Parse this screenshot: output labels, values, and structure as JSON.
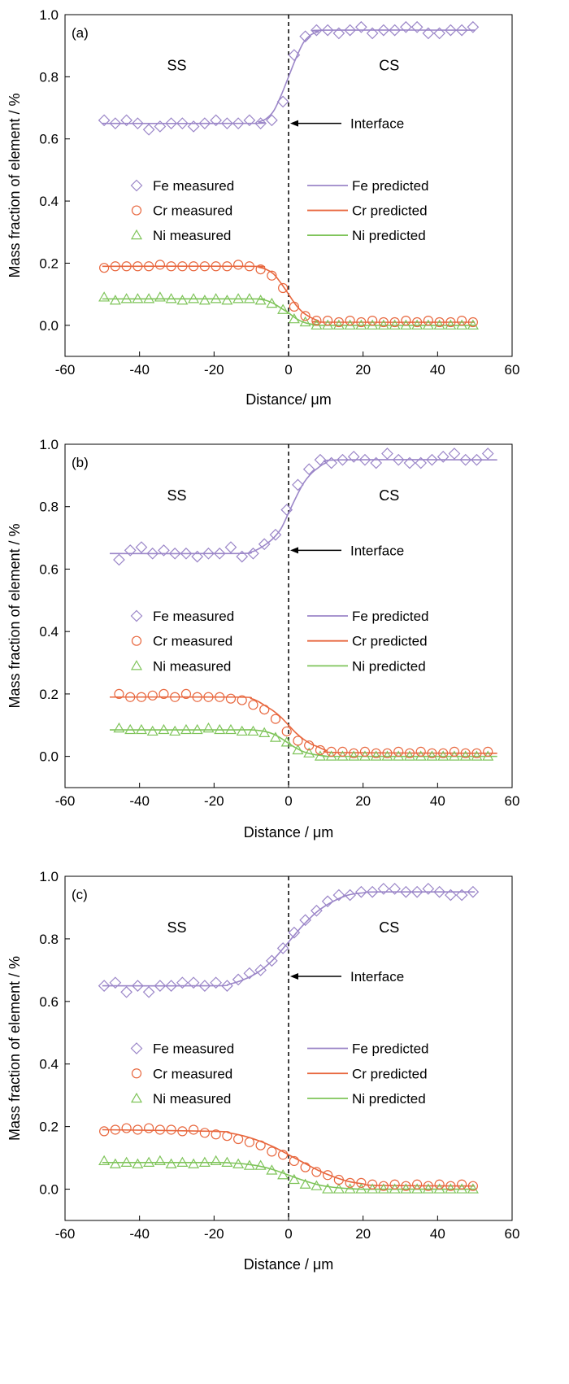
{
  "colors": {
    "fe": "#9b86c8",
    "cr": "#e8673e",
    "ni": "#7fc45a",
    "axis": "#000000",
    "interface_line": "#000000"
  },
  "chart_data": [
    {
      "type": "scatter",
      "panel_label": "(a)",
      "xlabel": "Distance/ μm",
      "ylabel": "Mass fraction of element / %",
      "xlim": [
        -60,
        60
      ],
      "ylim": [
        -0.1,
        1.0
      ],
      "xticks": [
        "-60",
        "-40",
        "-20",
        "0",
        "20",
        "40",
        "60"
      ],
      "yticks": [
        "0.0",
        "0.2",
        "0.4",
        "0.6",
        "0.8",
        "1.0"
      ],
      "grid": false,
      "region_labels": {
        "left": "SS",
        "right": "CS"
      },
      "interface": {
        "x": 0,
        "label": "Interface",
        "arrow_y": 0.65
      },
      "legend": {
        "measured": [
          "Fe measured",
          "Cr measured",
          "Ni measured"
        ],
        "predicted": [
          "Fe predicted",
          "Cr predicted",
          "Ni predicted"
        ]
      },
      "measured": {
        "x": [
          -49.5,
          -46.5,
          -43.5,
          -40.5,
          -37.5,
          -34.5,
          -31.5,
          -28.5,
          -25.5,
          -22.5,
          -19.5,
          -16.5,
          -13.5,
          -10.5,
          -7.5,
          -4.5,
          -1.5,
          1.5,
          4.5,
          7.5,
          10.5,
          13.5,
          16.5,
          19.5,
          22.5,
          25.5,
          28.5,
          31.5,
          34.5,
          37.5,
          40.5,
          43.5,
          46.5,
          49.5
        ],
        "Fe": [
          0.66,
          0.65,
          0.66,
          0.65,
          0.63,
          0.64,
          0.65,
          0.65,
          0.64,
          0.65,
          0.66,
          0.65,
          0.65,
          0.66,
          0.65,
          0.66,
          0.72,
          0.87,
          0.93,
          0.95,
          0.95,
          0.94,
          0.95,
          0.96,
          0.94,
          0.95,
          0.95,
          0.96,
          0.96,
          0.94,
          0.94,
          0.95,
          0.95,
          0.96
        ],
        "Cr": [
          0.185,
          0.19,
          0.19,
          0.19,
          0.19,
          0.195,
          0.19,
          0.19,
          0.19,
          0.19,
          0.19,
          0.19,
          0.195,
          0.19,
          0.18,
          0.16,
          0.12,
          0.06,
          0.03,
          0.015,
          0.015,
          0.01,
          0.015,
          0.01,
          0.015,
          0.01,
          0.01,
          0.015,
          0.01,
          0.015,
          0.01,
          0.01,
          0.015,
          0.01
        ],
        "Ni": [
          0.09,
          0.08,
          0.085,
          0.085,
          0.085,
          0.09,
          0.085,
          0.08,
          0.085,
          0.08,
          0.085,
          0.08,
          0.085,
          0.085,
          0.08,
          0.07,
          0.05,
          0.02,
          0.01,
          0.0,
          0.0,
          0.0,
          0.0,
          0.0,
          0.0,
          0.0,
          0.0,
          0.0,
          0.0,
          0.0,
          0.0,
          0.0,
          0.0,
          0.0
        ]
      },
      "predicted": {
        "x": [
          -50,
          -10,
          -8,
          -6,
          -4,
          -2,
          0,
          2,
          4,
          6,
          8,
          10,
          50
        ],
        "Fe": [
          0.65,
          0.65,
          0.655,
          0.665,
          0.69,
          0.74,
          0.8,
          0.86,
          0.91,
          0.935,
          0.945,
          0.95,
          0.95
        ],
        "Cr": [
          0.19,
          0.19,
          0.187,
          0.18,
          0.165,
          0.135,
          0.1,
          0.065,
          0.04,
          0.025,
          0.015,
          0.01,
          0.01
        ],
        "Ni": [
          0.085,
          0.085,
          0.084,
          0.08,
          0.07,
          0.055,
          0.04,
          0.022,
          0.01,
          0.004,
          0.002,
          0.0,
          0.0
        ]
      }
    },
    {
      "type": "scatter",
      "panel_label": "(b)",
      "xlabel": "Distance / μm",
      "ylabel": "Mass fraction of element / %",
      "xlim": [
        -60,
        60
      ],
      "ylim": [
        -0.1,
        1.0
      ],
      "xticks": [
        "-60",
        "-40",
        "-20",
        "0",
        "20",
        "40",
        "60"
      ],
      "yticks": [
        "0.0",
        "0.2",
        "0.4",
        "0.6",
        "0.8",
        "1.0"
      ],
      "grid": false,
      "region_labels": {
        "left": "SS",
        "right": "CS"
      },
      "interface": {
        "x": 0,
        "label": "Interface",
        "arrow_y": 0.66
      },
      "legend": {
        "measured": [
          "Fe measured",
          "Cr measured",
          "Ni measured"
        ],
        "predicted": [
          "Fe predicted",
          "Cr predicted",
          "Ni predicted"
        ]
      },
      "measured": {
        "x": [
          -45.5,
          -42.5,
          -39.5,
          -36.5,
          -33.5,
          -30.5,
          -27.5,
          -24.5,
          -21.5,
          -18.5,
          -15.5,
          -12.5,
          -9.5,
          -6.5,
          -3.5,
          -0.5,
          2.5,
          5.5,
          8.5,
          11.5,
          14.5,
          17.5,
          20.5,
          23.5,
          26.5,
          29.5,
          32.5,
          35.5,
          38.5,
          41.5,
          44.5,
          47.5,
          50.5,
          53.5
        ],
        "Fe": [
          0.63,
          0.66,
          0.67,
          0.65,
          0.66,
          0.65,
          0.65,
          0.64,
          0.65,
          0.65,
          0.67,
          0.64,
          0.65,
          0.68,
          0.71,
          0.79,
          0.87,
          0.92,
          0.95,
          0.94,
          0.95,
          0.96,
          0.95,
          0.94,
          0.97,
          0.95,
          0.94,
          0.94,
          0.95,
          0.96,
          0.97,
          0.95,
          0.95,
          0.97
        ],
        "Cr": [
          0.2,
          0.19,
          0.19,
          0.195,
          0.2,
          0.19,
          0.2,
          0.19,
          0.19,
          0.19,
          0.185,
          0.18,
          0.165,
          0.15,
          0.12,
          0.08,
          0.05,
          0.035,
          0.02,
          0.015,
          0.015,
          0.01,
          0.015,
          0.01,
          0.01,
          0.015,
          0.01,
          0.015,
          0.01,
          0.01,
          0.015,
          0.01,
          0.01,
          0.015
        ],
        "Ni": [
          0.09,
          0.085,
          0.085,
          0.08,
          0.085,
          0.08,
          0.085,
          0.085,
          0.09,
          0.085,
          0.085,
          0.08,
          0.08,
          0.075,
          0.06,
          0.045,
          0.02,
          0.01,
          0.0,
          0.0,
          0.0,
          0.0,
          0.0,
          0.0,
          0.0,
          0.0,
          0.0,
          0.0,
          0.0,
          0.0,
          0.0,
          0.0,
          0.0,
          0.0
        ]
      },
      "predicted": {
        "x": [
          -48,
          -14,
          -10,
          -8,
          -6,
          -4,
          -2,
          0,
          2,
          4,
          6,
          8,
          10,
          14,
          56
        ],
        "Fe": [
          0.65,
          0.65,
          0.655,
          0.665,
          0.68,
          0.7,
          0.73,
          0.78,
          0.83,
          0.875,
          0.905,
          0.925,
          0.94,
          0.95,
          0.95
        ],
        "Cr": [
          0.19,
          0.19,
          0.185,
          0.175,
          0.16,
          0.145,
          0.125,
          0.1,
          0.075,
          0.055,
          0.04,
          0.03,
          0.02,
          0.012,
          0.01
        ],
        "Ni": [
          0.085,
          0.085,
          0.085,
          0.083,
          0.079,
          0.071,
          0.058,
          0.042,
          0.027,
          0.015,
          0.008,
          0.004,
          0.001,
          0.0,
          0.0
        ]
      }
    },
    {
      "type": "scatter",
      "panel_label": "(c)",
      "xlabel": "Distance / μm",
      "ylabel": "Mass fraction of element / %",
      "xlim": [
        -60,
        60
      ],
      "ylim": [
        -0.1,
        1.0
      ],
      "xticks": [
        "-60",
        "-40",
        "-20",
        "0",
        "20",
        "40",
        "60"
      ],
      "yticks": [
        "0.0",
        "0.2",
        "0.4",
        "0.6",
        "0.8",
        "1.0"
      ],
      "grid": false,
      "region_labels": {
        "left": "SS",
        "right": "CS"
      },
      "interface": {
        "x": 0,
        "label": "Interface",
        "arrow_y": 0.68
      },
      "legend": {
        "measured": [
          "Fe measured",
          "Cr measured",
          "Ni measured"
        ],
        "predicted": [
          "Fe predicted",
          "Cr predicted",
          "Ni predicted"
        ]
      },
      "measured": {
        "x": [
          -49.5,
          -46.5,
          -43.5,
          -40.5,
          -37.5,
          -34.5,
          -31.5,
          -28.5,
          -25.5,
          -22.5,
          -19.5,
          -16.5,
          -13.5,
          -10.5,
          -7.5,
          -4.5,
          -1.5,
          1.5,
          4.5,
          7.5,
          10.5,
          13.5,
          16.5,
          19.5,
          22.5,
          25.5,
          28.5,
          31.5,
          34.5,
          37.5,
          40.5,
          43.5,
          46.5,
          49.5
        ],
        "Fe": [
          0.65,
          0.66,
          0.63,
          0.65,
          0.63,
          0.65,
          0.65,
          0.66,
          0.66,
          0.65,
          0.66,
          0.65,
          0.67,
          0.69,
          0.7,
          0.73,
          0.77,
          0.82,
          0.86,
          0.89,
          0.92,
          0.94,
          0.94,
          0.95,
          0.95,
          0.96,
          0.96,
          0.95,
          0.95,
          0.96,
          0.95,
          0.94,
          0.94,
          0.95
        ],
        "Cr": [
          0.185,
          0.19,
          0.195,
          0.19,
          0.195,
          0.19,
          0.19,
          0.185,
          0.19,
          0.18,
          0.175,
          0.17,
          0.16,
          0.15,
          0.14,
          0.12,
          0.11,
          0.09,
          0.07,
          0.055,
          0.045,
          0.03,
          0.02,
          0.02,
          0.015,
          0.01,
          0.015,
          0.01,
          0.015,
          0.01,
          0.015,
          0.01,
          0.015,
          0.01
        ],
        "Ni": [
          0.09,
          0.08,
          0.085,
          0.08,
          0.085,
          0.09,
          0.08,
          0.085,
          0.08,
          0.085,
          0.09,
          0.085,
          0.08,
          0.075,
          0.075,
          0.06,
          0.045,
          0.03,
          0.015,
          0.01,
          0.0,
          0.0,
          0.0,
          0.0,
          0.0,
          0.0,
          0.0,
          0.0,
          0.0,
          0.0,
          0.0,
          0.0,
          0.0,
          0.0
        ]
      },
      "predicted": {
        "x": [
          -50,
          -20,
          -16,
          -12,
          -8,
          -4,
          0,
          4,
          8,
          12,
          16,
          20,
          24,
          50
        ],
        "Fe": [
          0.65,
          0.65,
          0.655,
          0.67,
          0.695,
          0.735,
          0.79,
          0.845,
          0.89,
          0.92,
          0.94,
          0.947,
          0.95,
          0.95
        ],
        "Cr": [
          0.19,
          0.185,
          0.18,
          0.17,
          0.155,
          0.135,
          0.11,
          0.085,
          0.06,
          0.04,
          0.025,
          0.017,
          0.012,
          0.01
        ],
        "Ni": [
          0.085,
          0.085,
          0.084,
          0.081,
          0.074,
          0.062,
          0.045,
          0.028,
          0.014,
          0.006,
          0.002,
          0.0,
          0.0,
          0.0
        ]
      }
    }
  ]
}
